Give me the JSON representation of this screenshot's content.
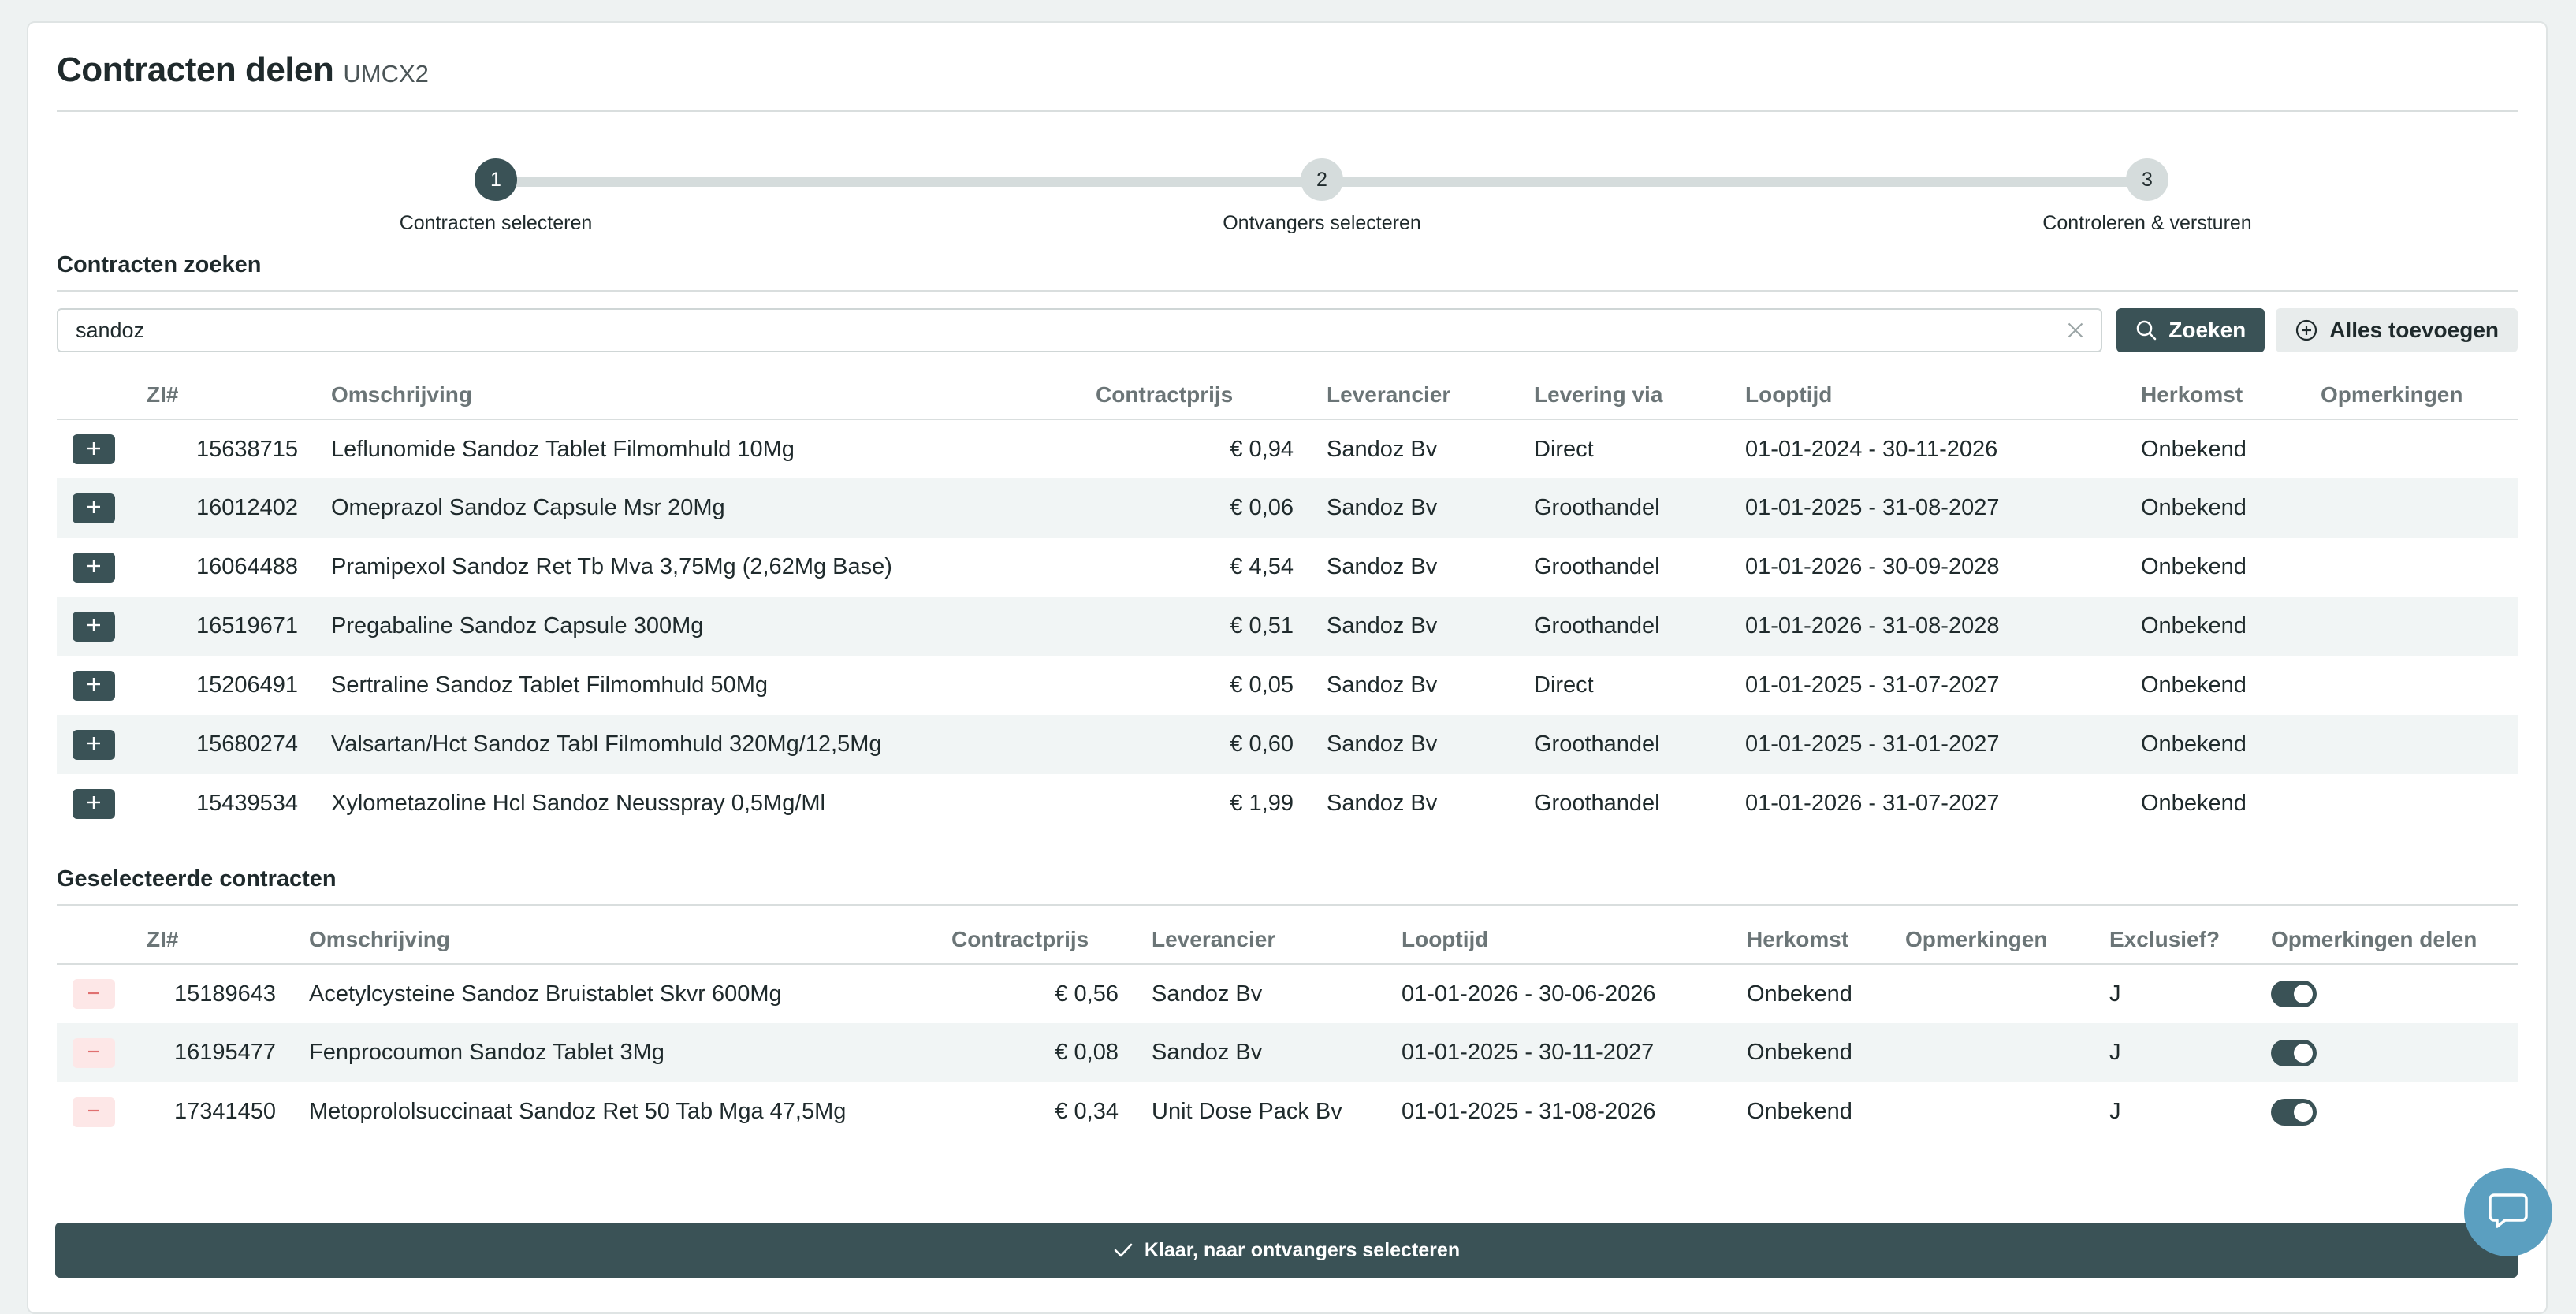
{
  "page": {
    "title": "Contracten delen",
    "subtitle": "UMCX2"
  },
  "steps": [
    {
      "number": "1",
      "label": "Contracten selecteren",
      "state": "active"
    },
    {
      "number": "2",
      "label": "Ontvangers selecteren",
      "state": "inactive"
    },
    {
      "number": "3",
      "label": "Controleren & versturen",
      "state": "inactive"
    }
  ],
  "search": {
    "section_title": "Contracten zoeken",
    "value": "sandoz",
    "search_label": "Zoeken",
    "add_all_label": "Alles toevoegen"
  },
  "results": {
    "headers": [
      "ZI#",
      "Omschrijving",
      "Contractprijs",
      "Leverancier",
      "Levering via",
      "Looptijd",
      "Herkomst",
      "Opmerkingen"
    ],
    "rows": [
      {
        "zi": "15638715",
        "desc": "Leflunomide Sandoz Tablet Filmomhuld 10Mg",
        "price": "€ 0,94",
        "supplier": "Sandoz Bv",
        "delivery": "Direct",
        "period": "01-01-2024 - 30-11-2026",
        "origin": "Onbekend",
        "remarks": ""
      },
      {
        "zi": "16012402",
        "desc": "Omeprazol Sandoz Capsule Msr 20Mg",
        "price": "€ 0,06",
        "supplier": "Sandoz Bv",
        "delivery": "Groothandel",
        "period": "01-01-2025 - 31-08-2027",
        "origin": "Onbekend",
        "remarks": ""
      },
      {
        "zi": "16064488",
        "desc": "Pramipexol Sandoz Ret Tb Mva 3,75Mg (2,62Mg Base)",
        "price": "€ 4,54",
        "supplier": "Sandoz Bv",
        "delivery": "Groothandel",
        "period": "01-01-2026 - 30-09-2028",
        "origin": "Onbekend",
        "remarks": ""
      },
      {
        "zi": "16519671",
        "desc": "Pregabaline Sandoz Capsule 300Mg",
        "price": "€ 0,51",
        "supplier": "Sandoz Bv",
        "delivery": "Groothandel",
        "period": "01-01-2026 - 31-08-2028",
        "origin": "Onbekend",
        "remarks": ""
      },
      {
        "zi": "15206491",
        "desc": "Sertraline Sandoz Tablet Filmomhuld 50Mg",
        "price": "€ 0,05",
        "supplier": "Sandoz Bv",
        "delivery": "Direct",
        "period": "01-01-2025 - 31-07-2027",
        "origin": "Onbekend",
        "remarks": ""
      },
      {
        "zi": "15680274",
        "desc": "Valsartan/Hct Sandoz Tabl Filmomhuld 320Mg/12,5Mg",
        "price": "€ 0,60",
        "supplier": "Sandoz Bv",
        "delivery": "Groothandel",
        "period": "01-01-2025 - 31-01-2027",
        "origin": "Onbekend",
        "remarks": ""
      },
      {
        "zi": "15439534",
        "desc": "Xylometazoline Hcl Sandoz Neusspray 0,5Mg/Ml",
        "price": "€ 1,99",
        "supplier": "Sandoz Bv",
        "delivery": "Groothandel",
        "period": "01-01-2026 - 31-07-2027",
        "origin": "Onbekend",
        "remarks": ""
      }
    ]
  },
  "selected": {
    "section_title": "Geselecteerde contracten",
    "headers": [
      "ZI#",
      "Omschrijving",
      "Contractprijs",
      "Leverancier",
      "Looptijd",
      "Herkomst",
      "Opmerkingen",
      "Exclusief?",
      "Opmerkingen delen"
    ],
    "rows": [
      {
        "zi": "15189643",
        "desc": "Acetylcysteine Sandoz Bruistablet Skvr 600Mg",
        "price": "€ 0,56",
        "supplier": "Sandoz Bv",
        "period": "01-01-2026 - 30-06-2026",
        "origin": "Onbekend",
        "remarks": "",
        "exclusive": "J",
        "share_remarks": true
      },
      {
        "zi": "16195477",
        "desc": "Fenprocoumon Sandoz Tablet 3Mg",
        "price": "€ 0,08",
        "supplier": "Sandoz Bv",
        "period": "01-01-2025 - 30-11-2027",
        "origin": "Onbekend",
        "remarks": "",
        "exclusive": "J",
        "share_remarks": true
      },
      {
        "zi": "17341450",
        "desc": "Metoprololsuccinaat Sandoz Ret 50 Tab Mga 47,5Mg",
        "price": "€ 0,34",
        "supplier": "Unit Dose Pack Bv",
        "period": "01-01-2025 - 31-08-2026",
        "origin": "Onbekend",
        "remarks": "",
        "exclusive": "J",
        "share_remarks": true
      }
    ]
  },
  "footer": {
    "finish_label": "Klaar, naar ontvangers selecteren"
  },
  "colors": {
    "primary": "#3a5256",
    "accent_chat": "#5b9fc0",
    "remove_bg": "#fde7e7",
    "remove_fg": "#e07070"
  }
}
